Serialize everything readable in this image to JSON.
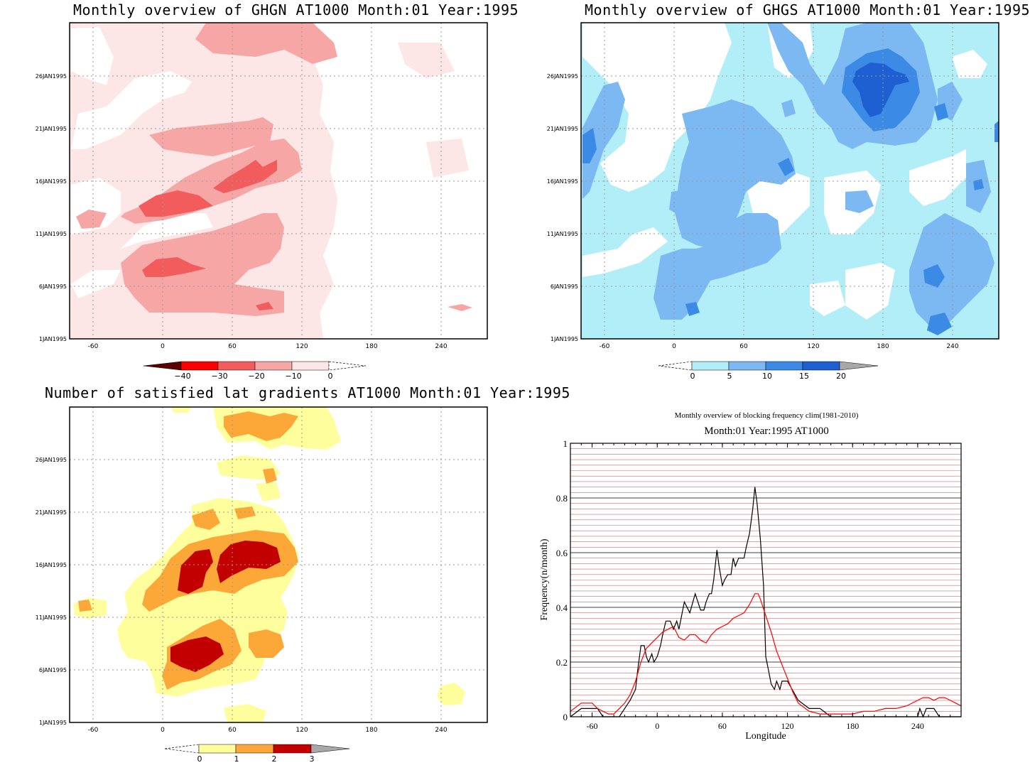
{
  "panels": [
    {
      "title": "Monthly overview of GHGN AT1000 Month:01 Year:1995",
      "colorbar": {
        "labels": [
          "−40",
          "−30",
          "−20",
          "−10",
          "0"
        ],
        "colors": [
          "#5a0000",
          "#ff0000",
          "#f25c5c",
          "#f7a6a6",
          "#fde6e6"
        ]
      }
    },
    {
      "title": "Monthly overview of GHGS AT1000 Month:01 Year:1995",
      "colorbar": {
        "labels": [
          "0",
          "5",
          "10",
          "15",
          "20"
        ],
        "colors": [
          "#b1eef7",
          "#7cb8f2",
          "#3a8ae6",
          "#1e5fd1",
          "#a8a8a8"
        ]
      }
    },
    {
      "title": "Number of satisfied lat gradients AT1000 Month:01 Year:1995",
      "colorbar": {
        "labels": [
          "0",
          "1",
          "2",
          "3"
        ],
        "colors": [
          "#fffe9d",
          "#fca838",
          "#c20000",
          "#a8a8a8"
        ]
      }
    }
  ],
  "axes": {
    "x_ticks": [
      "-60",
      "0",
      "60",
      "120",
      "180",
      "240"
    ],
    "y_ticks": [
      "1JAN1995",
      "6JAN1995",
      "11JAN1995",
      "16JAN1995",
      "21JAN1995",
      "26JAN1995"
    ]
  },
  "line_panel": {
    "title": "Monthly overview of blocking frequency clim(1981-2010)",
    "subtitle": "Month:01 Year:1995  AT1000",
    "xlabel": "Longitude",
    "ylabel": "Frequency(n/month)"
  },
  "chart_data": [
    {
      "type": "heatmap",
      "title": "Monthly overview of GHGN AT1000 Month:01 Year:1995",
      "x_ticks": [
        -60,
        0,
        60,
        120,
        180,
        240
      ],
      "y_ticks": [
        "1JAN1995",
        "6JAN1995",
        "11JAN1995",
        "16JAN1995",
        "21JAN1995",
        "26JAN1995"
      ],
      "xlim": [
        -80,
        280
      ],
      "colorbar_levels": [
        -40,
        -30,
        -20,
        -10,
        0
      ]
    },
    {
      "type": "heatmap",
      "title": "Monthly overview of GHGS AT1000 Month:01 Year:1995",
      "x_ticks": [
        -60,
        0,
        60,
        120,
        180,
        240
      ],
      "y_ticks": [
        "1JAN1995",
        "6JAN1995",
        "11JAN1995",
        "16JAN1995",
        "21JAN1995",
        "26JAN1995"
      ],
      "xlim": [
        -80,
        280
      ],
      "colorbar_levels": [
        0,
        5,
        10,
        15,
        20
      ]
    },
    {
      "type": "heatmap",
      "title": "Number of satisfied lat gradients AT1000 Month:01 Year:1995",
      "x_ticks": [
        -60,
        0,
        60,
        120,
        180,
        240
      ],
      "y_ticks": [
        "1JAN1995",
        "6JAN1995",
        "11JAN1995",
        "16JAN1995",
        "21JAN1995",
        "26JAN1995"
      ],
      "xlim": [
        -80,
        280
      ],
      "colorbar_levels": [
        0,
        1,
        2,
        3
      ]
    },
    {
      "type": "line",
      "title": "Monthly overview of blocking frequency clim(1981-2010)",
      "subtitle": "Month:01 Year:1995  AT1000",
      "xlabel": "Longitude",
      "ylabel": "Frequency(n/month)",
      "xlim": [
        -80,
        280
      ],
      "ylim": [
        0,
        1
      ],
      "x_ticks": [
        -60,
        0,
        60,
        120,
        180,
        240
      ],
      "y_ticks": [
        0,
        0.2,
        0.4,
        0.6,
        0.8,
        1
      ],
      "series": [
        {
          "color": "#000000",
          "x": [
            -80,
            -70,
            -55,
            -50,
            -45,
            -40,
            -35,
            -30,
            -25,
            -20,
            -18,
            -15,
            -12,
            -10,
            -8,
            -5,
            -3,
            0,
            3,
            5,
            8,
            10,
            12,
            15,
            18,
            20,
            25,
            30,
            35,
            40,
            43,
            45,
            48,
            50,
            52,
            55,
            57,
            60,
            62,
            65,
            68,
            70,
            72,
            75,
            78,
            80,
            82,
            85,
            88,
            90,
            92,
            95,
            98,
            100,
            103,
            105,
            108,
            110,
            113,
            115,
            120,
            130,
            140,
            150,
            160,
            170,
            180,
            190,
            200,
            210,
            220,
            230,
            240,
            242,
            245,
            248,
            250,
            255,
            260,
            270,
            280
          ],
          "y": [
            0,
            0.03,
            0.03,
            0,
            0,
            0,
            0,
            0.03,
            0.06,
            0.1,
            0.17,
            0.26,
            0.26,
            0.22,
            0.2,
            0.23,
            0.2,
            0.22,
            0.26,
            0.3,
            0.35,
            0.35,
            0.35,
            0.32,
            0.35,
            0.32,
            0.42,
            0.38,
            0.45,
            0.39,
            0.39,
            0.42,
            0.45,
            0.45,
            0.5,
            0.61,
            0.55,
            0.48,
            0.5,
            0.52,
            0.52,
            0.58,
            0.55,
            0.58,
            0.58,
            0.58,
            0.62,
            0.67,
            0.76,
            0.84,
            0.78,
            0.65,
            0.48,
            0.22,
            0.16,
            0.12,
            0.1,
            0.13,
            0.1,
            0.13,
            0.13,
            0.06,
            0.03,
            0.03,
            0,
            0,
            0,
            0,
            0,
            0,
            0,
            0,
            0,
            0.03,
            0,
            0.03,
            0.03,
            0.03,
            0,
            0,
            0
          ]
        },
        {
          "color": "#ff0000",
          "x": [
            -80,
            -70,
            -60,
            -55,
            -50,
            -45,
            -40,
            -35,
            -30,
            -25,
            -20,
            -15,
            -10,
            -5,
            0,
            5,
            10,
            15,
            20,
            25,
            30,
            35,
            40,
            45,
            50,
            55,
            60,
            65,
            70,
            75,
            80,
            85,
            90,
            93,
            95,
            100,
            105,
            110,
            115,
            120,
            125,
            130,
            140,
            150,
            160,
            170,
            180,
            190,
            200,
            210,
            220,
            230,
            240,
            245,
            250,
            255,
            260,
            265,
            270,
            275,
            280
          ],
          "y": [
            0.02,
            0.05,
            0.05,
            0.03,
            0.02,
            0.01,
            0.01,
            0.03,
            0.05,
            0.08,
            0.13,
            0.2,
            0.25,
            0.27,
            0.29,
            0.31,
            0.32,
            0.33,
            0.29,
            0.28,
            0.3,
            0.3,
            0.28,
            0.27,
            0.3,
            0.32,
            0.33,
            0.34,
            0.36,
            0.37,
            0.38,
            0.41,
            0.45,
            0.45,
            0.43,
            0.37,
            0.31,
            0.24,
            0.19,
            0.14,
            0.09,
            0.05,
            0.02,
            0.01,
            0.01,
            0.01,
            0.01,
            0.02,
            0.02,
            0.03,
            0.03,
            0.04,
            0.06,
            0.07,
            0.07,
            0.06,
            0.07,
            0.07,
            0.06,
            0.05,
            0.04
          ]
        }
      ]
    }
  ]
}
